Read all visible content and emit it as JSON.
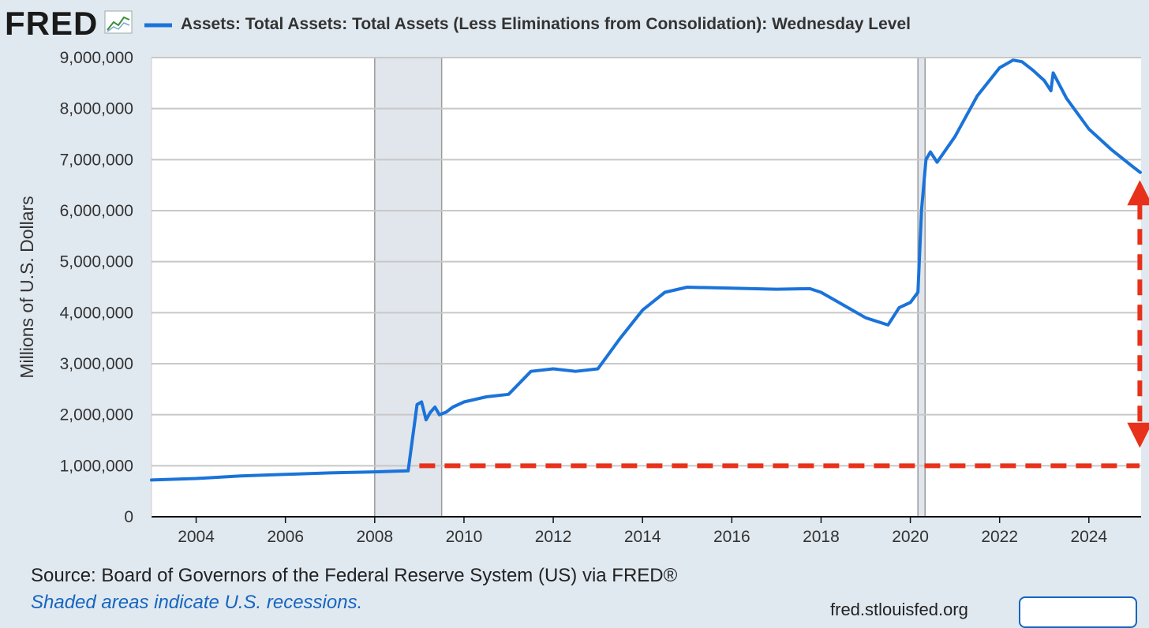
{
  "header": {
    "logo_text": "FRED",
    "legend_label": "Assets: Total Assets: Total Assets (Less Eliminations from Consolidation): Wednesday Level"
  },
  "footer": {
    "source": "Source: Board of Governors of the Federal Reserve System (US) via FRED®",
    "shade_note": "Shaded areas indicate U.S. recessions.",
    "site": "fred.stlouisfed.org"
  },
  "colors": {
    "background": "#e1e9f0",
    "series": "#1a73d9",
    "recession_shade": "#e1e5ec",
    "annotation": "#e8311a"
  },
  "chart_data": {
    "type": "line",
    "title": "",
    "ylabel": "Millions of U.S. Dollars",
    "xlabel": "",
    "xlim": [
      2003.0,
      2025.17
    ],
    "ylim": [
      0,
      9000000
    ],
    "x_ticks": [
      2004,
      2006,
      2008,
      2010,
      2012,
      2014,
      2016,
      2018,
      2020,
      2022,
      2024
    ],
    "y_ticks": [
      {
        "value": 0,
        "label": "0"
      },
      {
        "value": 1000000,
        "label": "1,000,000"
      },
      {
        "value": 2000000,
        "label": "2,000,000"
      },
      {
        "value": 3000000,
        "label": "3,000,000"
      },
      {
        "value": 4000000,
        "label": "4,000,000"
      },
      {
        "value": 5000000,
        "label": "5,000,000"
      },
      {
        "value": 6000000,
        "label": "6,000,000"
      },
      {
        "value": 7000000,
        "label": "7,000,000"
      },
      {
        "value": 8000000,
        "label": "8,000,000"
      },
      {
        "value": 9000000,
        "label": "9,000,000"
      }
    ],
    "grid": true,
    "legend_position": "top-left",
    "recessions": [
      {
        "start": 2008.0,
        "end": 2009.5
      },
      {
        "start": 2020.17,
        "end": 2020.33
      }
    ],
    "series": [
      {
        "name": "Assets: Total Assets: Total Assets (Less Eliminations from Consolidation): Wednesday Level",
        "x": [
          2003.0,
          2004.0,
          2005.0,
          2006.0,
          2007.0,
          2008.0,
          2008.75,
          2008.95,
          2009.05,
          2009.15,
          2009.25,
          2009.35,
          2009.45,
          2009.6,
          2009.75,
          2010.0,
          2010.5,
          2011.0,
          2011.5,
          2012.0,
          2012.5,
          2013.0,
          2013.5,
          2014.0,
          2014.5,
          2015.0,
          2016.0,
          2017.0,
          2017.75,
          2018.0,
          2018.5,
          2019.0,
          2019.5,
          2019.75,
          2020.0,
          2020.17,
          2020.25,
          2020.35,
          2020.45,
          2020.6,
          2021.0,
          2021.5,
          2022.0,
          2022.3,
          2022.5,
          2022.75,
          2023.0,
          2023.15,
          2023.2,
          2023.5,
          2024.0,
          2024.5,
          2025.0,
          2025.15
        ],
        "y": [
          720000,
          750000,
          800000,
          830000,
          860000,
          880000,
          900000,
          2200000,
          2250000,
          1900000,
          2050000,
          2150000,
          2000000,
          2050000,
          2150000,
          2250000,
          2350000,
          2400000,
          2850000,
          2900000,
          2850000,
          2900000,
          3500000,
          4050000,
          4400000,
          4500000,
          4480000,
          4460000,
          4470000,
          4400000,
          4150000,
          3900000,
          3760000,
          4100000,
          4200000,
          4400000,
          6000000,
          7000000,
          7150000,
          6950000,
          7450000,
          8250000,
          8800000,
          8950000,
          8920000,
          8750000,
          8550000,
          8350000,
          8700000,
          8200000,
          7600000,
          7200000,
          6850000,
          6750000
        ]
      }
    ],
    "annotations": {
      "reference_line_value": 1000000,
      "reference_line_start": 2009.0,
      "arrow_x": 2025.0,
      "arrow_top_value": 6600000,
      "arrow_bottom_value": 1350000
    }
  }
}
